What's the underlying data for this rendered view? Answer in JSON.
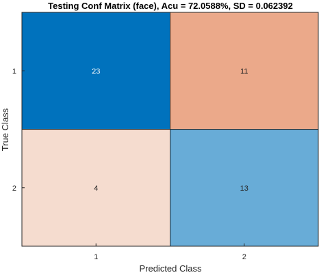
{
  "chart_data": {
    "type": "heatmap",
    "title": "Testing Conf Matrix (face), Acu = 72.0588%, SD = 0.062392",
    "xlabel": "Predicted Class",
    "ylabel": "True Class",
    "x_tick_labels": [
      "1",
      "2"
    ],
    "y_tick_labels": [
      "1",
      "2"
    ],
    "values": [
      [
        23,
        11
      ],
      [
        4,
        13
      ]
    ],
    "cell_colors": [
      [
        "#0072BD",
        "#EBA98A"
      ],
      [
        "#F5DCCF",
        "#68ACD7"
      ]
    ],
    "cell_text_colors": [
      [
        "#FFFFFF",
        "#262626"
      ],
      [
        "#262626",
        "#262626"
      ]
    ]
  }
}
